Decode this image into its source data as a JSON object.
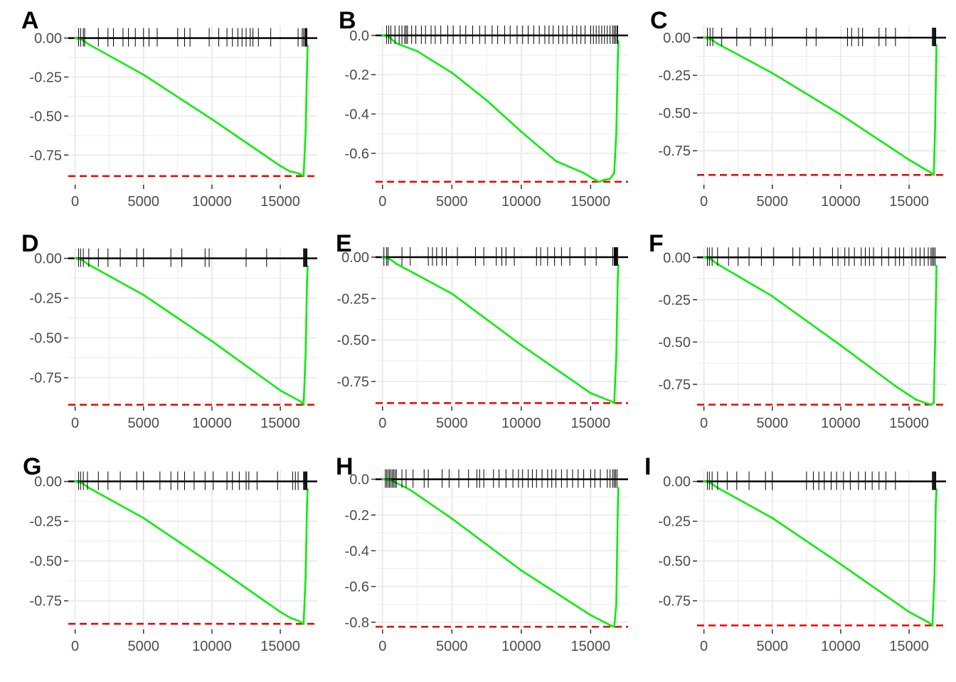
{
  "figure": {
    "gsea_color": "#00ee00",
    "reference_line_color": "#ee0000",
    "zero_line_color": "#000000",
    "grid_color": "#ebebeb",
    "tick_label_color": "#4d4d4d"
  },
  "chart_data": [
    {
      "type": "line",
      "panel_label": "A",
      "xlim": [
        -500,
        17700
      ],
      "ylim": [
        -0.94,
        0.08
      ],
      "x_ticks": [
        0,
        5000,
        10000,
        15000
      ],
      "x_tick_labels": [
        "0",
        "5000",
        "10000",
        "15000"
      ],
      "y_ticks": [
        0.0,
        -0.25,
        -0.5,
        -0.75
      ],
      "y_tick_labels": [
        "0.00",
        "-0.25",
        "-0.50",
        "-0.75"
      ],
      "min_line": -0.885,
      "series": [
        {
          "x": [
            0,
            500,
            1000,
            5000,
            10000,
            15000,
            15700,
            16000,
            16400,
            16700,
            16850,
            16950,
            17000
          ],
          "y": [
            0.0,
            -0.01,
            -0.04,
            -0.235,
            -0.52,
            -0.82,
            -0.855,
            -0.86,
            -0.87,
            -0.885,
            -0.6,
            -0.2,
            -0.05
          ]
        }
      ],
      "hits": [
        250,
        400,
        600,
        700,
        1700,
        2400,
        2800,
        3500,
        3900,
        4400,
        5000,
        5400,
        6000,
        7500,
        8000,
        8400,
        9800,
        10500,
        11100,
        11500,
        11900,
        12200,
        12500,
        12800,
        13000,
        13400,
        14300,
        16300,
        16600,
        16700,
        16800,
        16850,
        16900,
        16950
      ]
    },
    {
      "type": "line",
      "panel_label": "B",
      "xlim": [
        -500,
        17700
      ],
      "ylim": [
        -0.76,
        0.05
      ],
      "x_ticks": [
        0,
        5000,
        10000,
        15000
      ],
      "x_tick_labels": [
        "0",
        "5000",
        "10000",
        "15000"
      ],
      "y_ticks": [
        0.0,
        -0.2,
        -0.4,
        -0.6
      ],
      "y_tick_labels": [
        "0.0",
        "-0.2",
        "-0.4",
        "-0.6"
      ],
      "min_line": -0.745,
      "series": [
        {
          "x": [
            0,
            500,
            1000,
            2500,
            5000,
            7500,
            10000,
            12500,
            13500,
            14500,
            15200,
            15600,
            16000,
            16400,
            16700,
            16850,
            16950,
            17000
          ],
          "y": [
            0.0,
            -0.01,
            -0.04,
            -0.08,
            -0.19,
            -0.33,
            -0.49,
            -0.64,
            -0.67,
            -0.7,
            -0.73,
            -0.745,
            -0.735,
            -0.73,
            -0.7,
            -0.5,
            -0.15,
            -0.03
          ]
        }
      ],
      "hits": [
        300,
        450,
        600,
        900,
        1200,
        1400,
        1600,
        1700,
        1800,
        2100,
        2400,
        2800,
        3100,
        3500,
        3800,
        4200,
        4700,
        5100,
        5600,
        6000,
        6500,
        7000,
        7400,
        7900,
        8300,
        8800,
        9200,
        9700,
        10100,
        10500,
        10900,
        11300,
        11700,
        12000,
        12300,
        12700,
        13000,
        13300,
        13700,
        14000,
        14300,
        14600,
        15000,
        15200,
        15400,
        15600,
        15800,
        16000,
        16200,
        16400,
        16600,
        16700,
        16800,
        16900,
        16950
      ]
    },
    {
      "type": "line",
      "panel_label": "C",
      "xlim": [
        -500,
        17700
      ],
      "ylim": [
        -0.975,
        0.08
      ],
      "x_ticks": [
        0,
        5000,
        10000,
        15000
      ],
      "x_tick_labels": [
        "0",
        "5000",
        "10000",
        "15000"
      ],
      "y_ticks": [
        0.0,
        -0.25,
        -0.5,
        -0.75
      ],
      "y_tick_labels": [
        "0.00",
        "-0.25",
        "-0.50",
        "-0.75"
      ],
      "min_line": -0.91,
      "series": [
        {
          "x": [
            0,
            500,
            1000,
            5000,
            10000,
            15000,
            16500,
            16800,
            16900,
            16980,
            17000
          ],
          "y": [
            0.0,
            -0.01,
            -0.04,
            -0.235,
            -0.51,
            -0.81,
            -0.89,
            -0.91,
            -0.6,
            -0.15,
            -0.05
          ]
        }
      ],
      "hits": [
        250,
        450,
        650,
        1300,
        2400,
        3400,
        4500,
        5000,
        7500,
        8200,
        10500,
        10800,
        11300,
        11600,
        12800,
        13300,
        14000,
        16700,
        16750,
        16800,
        16850,
        16900,
        16950
      ]
    },
    {
      "type": "line",
      "panel_label": "D",
      "xlim": [
        -500,
        17700
      ],
      "ylim": [
        -0.93,
        0.07
      ],
      "x_ticks": [
        0,
        5000,
        10000,
        15000
      ],
      "x_tick_labels": [
        "0",
        "5000",
        "10000",
        "15000"
      ],
      "y_ticks": [
        0.0,
        -0.25,
        -0.5,
        -0.75
      ],
      "y_tick_labels": [
        "0.00",
        "-0.25",
        "-0.50",
        "-0.75"
      ],
      "min_line": -0.92,
      "series": [
        {
          "x": [
            0,
            500,
            1000,
            5000,
            10000,
            15000,
            16500,
            16700,
            16850,
            16950,
            17000
          ],
          "y": [
            0.0,
            -0.01,
            -0.04,
            -0.23,
            -0.52,
            -0.83,
            -0.9,
            -0.92,
            -0.6,
            -0.15,
            -0.05
          ]
        }
      ],
      "hits": [
        250,
        400,
        600,
        1000,
        1700,
        2400,
        3300,
        4500,
        5000,
        7000,
        7800,
        9500,
        9800,
        12500,
        14000,
        16700,
        16750,
        16800,
        16850,
        16900,
        16950
      ]
    },
    {
      "type": "line",
      "panel_label": "E",
      "xlim": [
        -500,
        17700
      ],
      "ylim": [
        -0.9,
        0.06
      ],
      "x_ticks": [
        0,
        5000,
        10000,
        15000
      ],
      "x_tick_labels": [
        "0",
        "5000",
        "10000",
        "15000"
      ],
      "y_ticks": [
        0.0,
        -0.25,
        -0.5,
        -0.75
      ],
      "y_tick_labels": [
        "0.00",
        "-0.25",
        "-0.50",
        "-0.75"
      ],
      "min_line": -0.88,
      "series": [
        {
          "x": [
            0,
            300,
            500,
            1000,
            5000,
            10000,
            15000,
            16500,
            16700,
            16850,
            16950,
            17000
          ],
          "y": [
            0.0,
            -0.005,
            -0.01,
            -0.04,
            -0.22,
            -0.53,
            -0.82,
            -0.87,
            -0.88,
            -0.6,
            -0.15,
            -0.05
          ]
        }
      ],
      "hits": [
        100,
        300,
        400,
        1400,
        2000,
        3300,
        3600,
        3900,
        4300,
        4600,
        5400,
        6700,
        7300,
        8200,
        8600,
        8900,
        9500,
        11100,
        11400,
        11900,
        12400,
        12900,
        13500,
        14600,
        15400,
        16600,
        16700,
        16750,
        16800,
        16850,
        16900,
        16950
      ]
    },
    {
      "type": "line",
      "panel_label": "F",
      "xlim": [
        -500,
        17700
      ],
      "ylim": [
        -0.88,
        0.06
      ],
      "x_ticks": [
        0,
        5000,
        10000,
        15000
      ],
      "x_tick_labels": [
        "0",
        "5000",
        "10000",
        "15000"
      ],
      "y_ticks": [
        0.0,
        -0.25,
        -0.5,
        -0.75
      ],
      "y_tick_labels": [
        "0.00",
        "-0.25",
        "-0.50",
        "-0.75"
      ],
      "min_line": -0.87,
      "series": [
        {
          "x": [
            0,
            500,
            1000,
            5000,
            10000,
            14000,
            15500,
            16200,
            16600,
            16800,
            16900,
            16980,
            17000
          ],
          "y": [
            0.0,
            -0.01,
            -0.04,
            -0.23,
            -0.52,
            -0.76,
            -0.84,
            -0.86,
            -0.87,
            -0.86,
            -0.5,
            -0.15,
            -0.05
          ]
        }
      ],
      "hits": [
        250,
        400,
        600,
        1000,
        1800,
        2500,
        3300,
        4200,
        5100,
        6500,
        7000,
        8000,
        8500,
        9400,
        9800,
        10300,
        10600,
        11000,
        11500,
        11800,
        12100,
        12400,
        13000,
        13500,
        14000,
        14300,
        14600,
        15200,
        15500,
        15800,
        16100,
        16400,
        16600,
        16700,
        16800,
        16900
      ]
    },
    {
      "type": "line",
      "panel_label": "G",
      "xlim": [
        -500,
        17700
      ],
      "ylim": [
        -0.93,
        0.07
      ],
      "x_ticks": [
        0,
        5000,
        10000,
        15000
      ],
      "x_tick_labels": [
        "0",
        "5000",
        "10000",
        "15000"
      ],
      "y_ticks": [
        0.0,
        -0.25,
        -0.5,
        -0.75
      ],
      "y_tick_labels": [
        "0.00",
        "-0.25",
        "-0.50",
        "-0.75"
      ],
      "min_line": -0.895,
      "series": [
        {
          "x": [
            0,
            500,
            1000,
            5000,
            10000,
            15000,
            15800,
            16300,
            16700,
            16850,
            16950,
            17000
          ],
          "y": [
            0.0,
            -0.01,
            -0.04,
            -0.23,
            -0.52,
            -0.82,
            -0.86,
            -0.875,
            -0.895,
            -0.6,
            -0.15,
            -0.05
          ]
        }
      ],
      "hits": [
        250,
        400,
        600,
        900,
        1700,
        2400,
        3300,
        4500,
        5000,
        6200,
        7000,
        7500,
        8000,
        8700,
        9500,
        10100,
        11100,
        11500,
        12000,
        12500,
        12700,
        13300,
        14800,
        15900,
        16100,
        16300,
        16700,
        16750,
        16800,
        16850,
        16900,
        16950
      ]
    },
    {
      "type": "line",
      "panel_label": "H",
      "xlim": [
        -500,
        17700
      ],
      "ylim": [
        -0.84,
        0.05
      ],
      "x_ticks": [
        0,
        5000,
        10000,
        15000
      ],
      "x_tick_labels": [
        "0",
        "5000",
        "10000",
        "15000"
      ],
      "y_ticks": [
        0.0,
        -0.2,
        -0.4,
        -0.6,
        -0.8
      ],
      "y_tick_labels": [
        "0.0",
        "-0.2",
        "-0.4",
        "-0.6",
        "-0.8"
      ],
      "min_line": -0.825,
      "series": [
        {
          "x": [
            0,
            300,
            600,
            1000,
            2000,
            5000,
            10000,
            15000,
            16000,
            16500,
            16700,
            16850,
            16950,
            17000
          ],
          "y": [
            0.0,
            -0.002,
            -0.005,
            -0.02,
            -0.06,
            -0.22,
            -0.51,
            -0.76,
            -0.8,
            -0.82,
            -0.825,
            -0.7,
            -0.2,
            -0.05
          ]
        }
      ],
      "hits": [
        200,
        300,
        400,
        500,
        600,
        700,
        800,
        900,
        1000,
        1400,
        1700,
        2200,
        3000,
        3300,
        4300,
        4800,
        5500,
        6200,
        6800,
        7000,
        7300,
        8000,
        8400,
        8900,
        9400,
        9800,
        10100,
        10500,
        10800,
        11100,
        11500,
        11900,
        12200,
        12500,
        12900,
        13300,
        13700,
        14100,
        14500,
        15000,
        15300,
        15700,
        16200,
        16400,
        16600,
        16700,
        16800,
        16900
      ]
    },
    {
      "type": "line",
      "panel_label": "I",
      "xlim": [
        -500,
        17700
      ],
      "ylim": [
        -0.93,
        0.07
      ],
      "x_ticks": [
        0,
        5000,
        10000,
        15000
      ],
      "x_tick_labels": [
        "0",
        "5000",
        "10000",
        "15000"
      ],
      "y_ticks": [
        0.0,
        -0.25,
        -0.5,
        -0.75
      ],
      "y_tick_labels": [
        "0.00",
        "-0.25",
        "-0.50",
        "-0.75"
      ],
      "min_line": -0.905,
      "series": [
        {
          "x": [
            0,
            500,
            1000,
            5000,
            10000,
            15000,
            16400,
            16700,
            16850,
            16950,
            17000
          ],
          "y": [
            0.0,
            -0.01,
            -0.04,
            -0.23,
            -0.52,
            -0.82,
            -0.885,
            -0.905,
            -0.6,
            -0.15,
            -0.05
          ]
        }
      ],
      "hits": [
        250,
        400,
        600,
        1000,
        1700,
        2400,
        3300,
        4500,
        5000,
        7500,
        8000,
        8400,
        8800,
        9300,
        9700,
        10200,
        10700,
        11300,
        11800,
        12300,
        12800,
        13300,
        14000,
        16700,
        16750,
        16800,
        16850,
        16900,
        16950
      ]
    }
  ]
}
